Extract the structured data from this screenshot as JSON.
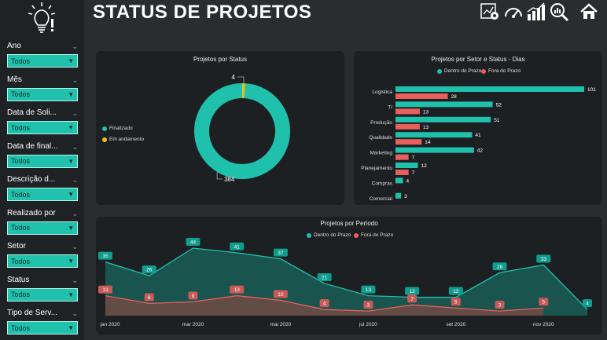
{
  "header": {
    "title": "STATUS DE PROJETOS"
  },
  "colors": {
    "teal": "#1fc1ad",
    "coral": "#e8605d",
    "yellow": "#e6c31c",
    "dark_teal_fill": "#1b5a53",
    "dark_coral_fill": "#6b4a46"
  },
  "nav_icons": [
    "report-icon",
    "gauge-icon",
    "bar-chart-icon",
    "search-analytics-icon",
    "home-icon"
  ],
  "filters": [
    {
      "label": "Ano",
      "value": "Todos"
    },
    {
      "label": "Mês",
      "value": "Todos"
    },
    {
      "label": "Data de Soli...",
      "value": "Todos"
    },
    {
      "label": "Data de final...",
      "value": "Todos"
    },
    {
      "label": "Descrição d...",
      "value": "Todos"
    },
    {
      "label": "Realizado por",
      "value": "Todos"
    },
    {
      "label": "Setor",
      "value": "Todos"
    },
    {
      "label": "Status",
      "value": "Todos"
    },
    {
      "label": "Tipo de Serv...",
      "value": "Todos"
    }
  ],
  "status_card": {
    "title": "Projetos por Status",
    "legend": [
      {
        "name": "Finalizado"
      },
      {
        "name": "Em andamento"
      }
    ]
  },
  "sector_card": {
    "title": "Projetos por Setor e Status - Dias",
    "legend": [
      {
        "name": "Dentro do Prazo"
      },
      {
        "name": "Fora do Prazo"
      }
    ]
  },
  "period_card": {
    "title": "Projetos por Período",
    "legend": [
      {
        "name": "Dentro do Prazo"
      },
      {
        "name": "Fora do Prazo"
      }
    ]
  },
  "chart_data": [
    {
      "type": "pie",
      "title": "Projetos por Status",
      "categories": [
        "Finalizado",
        "Em andamento"
      ],
      "values": [
        384,
        4
      ],
      "legend": "left"
    },
    {
      "type": "bar",
      "title": "Projetos por Setor e Status - Dias",
      "orientation": "horizontal",
      "categories": [
        "Logistica",
        "TI",
        "Produção",
        "Qualidade",
        "Marketing",
        "Planejamento",
        "Compras",
        "Comercial"
      ],
      "series": [
        {
          "name": "Dentro do Prazo",
          "values": [
            101,
            52,
            51,
            41,
            42,
            12,
            4,
            3
          ]
        },
        {
          "name": "Fora do Prazo",
          "values": [
            28,
            13,
            13,
            14,
            7,
            7,
            null,
            null
          ]
        }
      ],
      "legend": "top"
    },
    {
      "type": "area",
      "title": "Projetos por Período",
      "x": [
        "jan 2020",
        "fev 2020",
        "mar 2020",
        "abr 2020",
        "mai 2020",
        "jun 2020",
        "jul 2020",
        "ago 2020",
        "set 2020",
        "out 2020",
        "nov 2020",
        "dez 2020"
      ],
      "x_tick_labels": [
        "jan 2020",
        "mar 2020",
        "mai 2020",
        "jul 2020",
        "set 2020",
        "nov 2020"
      ],
      "series": [
        {
          "name": "Dentro do Prazo",
          "values": [
            35,
            26,
            44,
            41,
            37,
            21,
            13,
            12,
            12,
            28,
            33,
            4
          ]
        },
        {
          "name": "Fora do Prazo",
          "values": [
            13,
            8,
            9,
            13,
            10,
            4,
            3,
            7,
            5,
            3,
            5,
            null
          ]
        }
      ],
      "legend": "top",
      "grid": false
    }
  ]
}
